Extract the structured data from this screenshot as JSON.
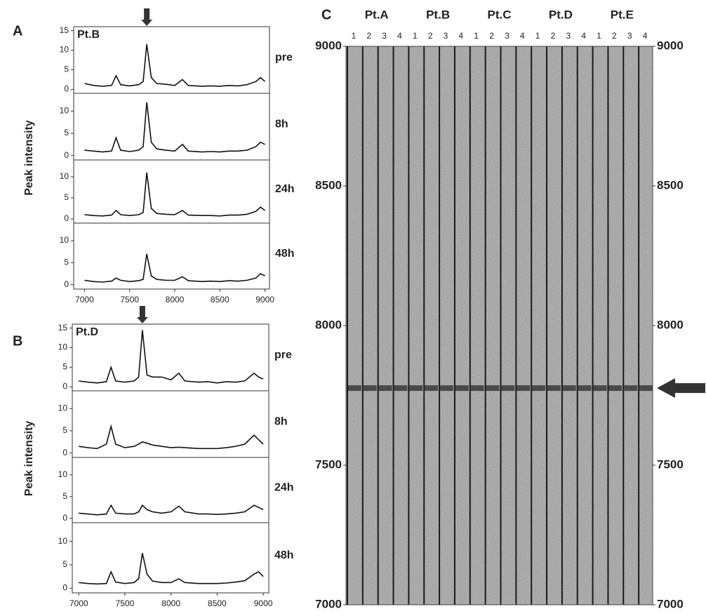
{
  "chart_data": [
    {
      "type": "line",
      "panel": "A",
      "title": "Pt.B",
      "ylabel": "Peak intensity",
      "color": "#111111",
      "x": [
        7000,
        7100,
        7200,
        7300,
        7350,
        7400,
        7500,
        7600,
        7650,
        7690,
        7740,
        7800,
        7900,
        8000,
        8085,
        8150,
        8300,
        8400,
        8500,
        8600,
        8700,
        8800,
        8900,
        8950,
        9000
      ],
      "xlim": [
        6880,
        9050
      ],
      "xticks": [
        7000,
        7500,
        8000,
        8500,
        9000
      ],
      "marker_x": 7690,
      "subplots": [
        {
          "name": "pre",
          "ylim": [
            -1,
            16
          ],
          "yticks": [
            0,
            5,
            10,
            15
          ],
          "values": [
            1.5,
            1,
            0.8,
            1,
            3.5,
            1.2,
            0.9,
            1.2,
            2,
            11.5,
            3,
            1.5,
            1.3,
            1,
            2.5,
            1,
            0.8,
            0.9,
            0.8,
            1,
            0.9,
            1.2,
            2,
            3,
            2
          ]
        },
        {
          "name": "8h",
          "ylim": [
            -1,
            14
          ],
          "yticks": [
            0,
            5,
            10
          ],
          "values": [
            1.2,
            1,
            0.8,
            1,
            4,
            1.2,
            0.9,
            1.2,
            2,
            12,
            3,
            1.5,
            1.2,
            1,
            2.5,
            1,
            0.8,
            0.9,
            0.8,
            1,
            1,
            1.2,
            2,
            3,
            2.5
          ]
        },
        {
          "name": "24h",
          "ylim": [
            -1,
            14
          ],
          "yticks": [
            0,
            5,
            10
          ],
          "values": [
            1,
            0.8,
            0.7,
            0.9,
            2,
            1,
            0.8,
            1,
            1.5,
            11,
            2.5,
            1.3,
            1.1,
            1,
            2,
            0.9,
            0.8,
            0.8,
            0.7,
            0.9,
            0.9,
            1.1,
            1.8,
            2.8,
            2
          ]
        },
        {
          "name": "48h",
          "ylim": [
            -1,
            14
          ],
          "yticks": [
            0,
            5,
            10
          ],
          "values": [
            1,
            0.7,
            0.6,
            0.8,
            1.5,
            1,
            0.7,
            0.9,
            1.2,
            7,
            2,
            1.2,
            1,
            1,
            1.8,
            0.9,
            0.7,
            0.8,
            0.7,
            0.9,
            0.8,
            1,
            1.5,
            2.5,
            2
          ]
        }
      ]
    },
    {
      "type": "line",
      "panel": "B",
      "title": "Pt.D",
      "ylabel": "Peak intensity",
      "color": "#111111",
      "x": [
        7000,
        7100,
        7200,
        7300,
        7350,
        7400,
        7500,
        7600,
        7650,
        7690,
        7740,
        7800,
        7900,
        8000,
        8085,
        8150,
        8300,
        8400,
        8500,
        8600,
        8700,
        8800,
        8900,
        8950,
        9000
      ],
      "xlim": [
        6930,
        9060
      ],
      "xticks": [
        7000,
        7500,
        8000,
        8500,
        9000
      ],
      "marker_x": 7690,
      "subplots": [
        {
          "name": "pre",
          "ylim": [
            -1,
            16
          ],
          "yticks": [
            0,
            5,
            10,
            15
          ],
          "values": [
            1.5,
            1.2,
            1,
            1.3,
            5,
            1.5,
            1.2,
            1.5,
            2.5,
            14.5,
            3,
            2.5,
            2.5,
            1.8,
            3.5,
            1.5,
            1.2,
            1.3,
            1,
            1.3,
            1.2,
            1.5,
            3.5,
            2.5,
            2
          ]
        },
        {
          "name": "8h",
          "ylim": [
            -1,
            14
          ],
          "yticks": [
            0,
            5,
            10
          ],
          "values": [
            1.5,
            1.2,
            1,
            2,
            6,
            2,
            1.2,
            1.5,
            2,
            2.5,
            2.2,
            1.8,
            1.5,
            1.2,
            1.3,
            1.2,
            1,
            1,
            1,
            1.2,
            1.5,
            2,
            4,
            3,
            2
          ]
        },
        {
          "name": "24h",
          "ylim": [
            -1,
            14
          ],
          "yticks": [
            0,
            5,
            10
          ],
          "values": [
            1.2,
            1,
            0.8,
            1,
            3,
            1.2,
            1,
            1,
            1.5,
            3,
            2,
            1.5,
            1.2,
            1.5,
            2.8,
            1.5,
            1,
            1,
            0.9,
            1,
            1.2,
            1.5,
            3,
            2.5,
            2
          ]
        },
        {
          "name": "48h",
          "ylim": [
            -1,
            14
          ],
          "yticks": [
            0,
            5,
            10
          ],
          "values": [
            1.2,
            1,
            0.9,
            1,
            3.5,
            1.3,
            1,
            1.2,
            2,
            7.5,
            3,
            1.5,
            1.2,
            1.2,
            2,
            1.2,
            1,
            1,
            1,
            1.1,
            1.3,
            1.6,
            3,
            3.5,
            2.5
          ]
        }
      ]
    },
    {
      "type": "gel",
      "panel": "C",
      "ylim": [
        7000,
        9000
      ],
      "yticks": [
        7000,
        7500,
        8000,
        8500,
        9000
      ],
      "band": 7776,
      "color": "#2a2a2a",
      "groups": [
        {
          "name": "Pt.A",
          "lanes": [
            "1",
            "2",
            "3",
            "4"
          ]
        },
        {
          "name": "Pt.B",
          "lanes": [
            "1",
            "2",
            "3",
            "4"
          ]
        },
        {
          "name": "Pt.C",
          "lanes": [
            "1",
            "2",
            "3",
            "4"
          ]
        },
        {
          "name": "Pt.D",
          "lanes": [
            "1",
            "2",
            "3",
            "4"
          ]
        },
        {
          "name": "Pt.E",
          "lanes": [
            "1",
            "2",
            "3",
            "4"
          ]
        }
      ]
    }
  ]
}
